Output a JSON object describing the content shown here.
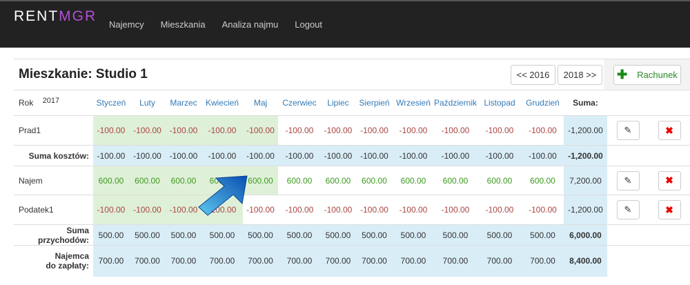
{
  "nav": {
    "logo": "RENTMGR",
    "logo_a": "RENT",
    "logo_b": "MGR",
    "links": [
      "Najemcy",
      "Mieszkania",
      "Analiza najmu",
      "Logout"
    ]
  },
  "page": {
    "title": "Mieszkanie: Studio 1",
    "prev_year": "<< 2016",
    "next_year": "2018 >>",
    "add_label": "Rachunek"
  },
  "table": {
    "year_label": "Rok",
    "year": "2017",
    "months": [
      "Styczeń",
      "Luty",
      "Marzec",
      "Kwiecień",
      "Maj",
      "Czerwiec",
      "Lipiec",
      "Sierpień",
      "Wrzesień",
      "Październik",
      "Listopad",
      "Grudzień"
    ],
    "sum_header": "Suma:",
    "rows": [
      {
        "label": "Prad1",
        "values": [
          "-100.00",
          "-100.00",
          "-100.00",
          "-100.00",
          "-100.00",
          "-100.00",
          "-100.00",
          "-100.00",
          "-100.00",
          "-100.00",
          "-100.00",
          "-100.00"
        ],
        "sum": "-1,200.00",
        "paid_months": 5
      },
      {
        "label": "Suma kosztów:",
        "values": [
          "-100.00",
          "-100.00",
          "-100.00",
          "-100.00",
          "-100.00",
          "-100.00",
          "-100.00",
          "-100.00",
          "-100.00",
          "-100.00",
          "-100.00",
          "-100.00"
        ],
        "sum": "-1,200.00"
      },
      {
        "label": "Najem",
        "values": [
          "600.00",
          "600.00",
          "600.00",
          "600.00",
          "600.00",
          "600.00",
          "600.00",
          "600.00",
          "600.00",
          "600.00",
          "600.00",
          "600.00"
        ],
        "sum": "7,200.00",
        "paid_months": 5
      },
      {
        "label": "Podatek1",
        "values": [
          "-100.00",
          "-100.00",
          "-100.00",
          "-100.00",
          "-100.00",
          "-100.00",
          "-100.00",
          "-100.00",
          "-100.00",
          "-100.00",
          "-100.00",
          "-100.00"
        ],
        "sum": "-1,200.00",
        "paid_months": 4
      },
      {
        "label": "Suma przychodów:",
        "values": [
          "500.00",
          "500.00",
          "500.00",
          "500.00",
          "500.00",
          "500.00",
          "500.00",
          "500.00",
          "500.00",
          "500.00",
          "500.00",
          "500.00"
        ],
        "sum": "6,000.00"
      },
      {
        "label": "Najemca do zapłaty:",
        "label_lines": [
          "Najemca",
          "do zapłaty:"
        ],
        "values": [
          "700.00",
          "700.00",
          "700.00",
          "700.00",
          "700.00",
          "700.00",
          "700.00",
          "700.00",
          "700.00",
          "700.00",
          "700.00",
          "700.00"
        ],
        "sum": "8,400.00"
      }
    ]
  },
  "colors": {
    "paid": "#dff0d8",
    "summary": "#d9edf7",
    "negative": "#a94442",
    "positive": "#3c9a1e",
    "link": "#337ab7",
    "logo_accent": "#b24fd8"
  }
}
